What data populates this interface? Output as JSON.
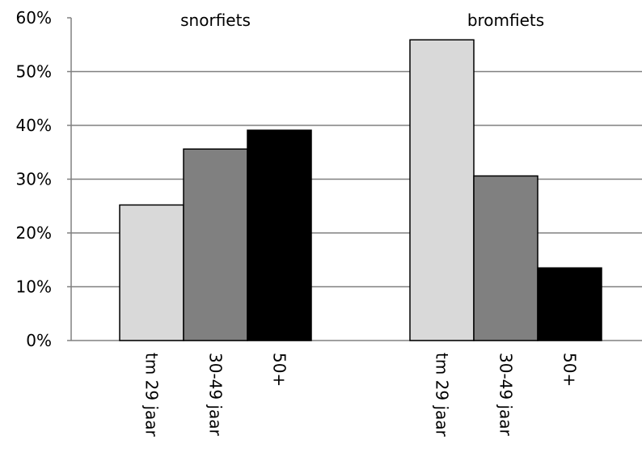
{
  "chart_data": {
    "type": "bar",
    "ylim": [
      0,
      60
    ],
    "y_ticks": [
      "0%",
      "10%",
      "20%",
      "30%",
      "40%",
      "50%",
      "60%"
    ],
    "y_tick_values": [
      0,
      10,
      20,
      30,
      40,
      50,
      60
    ],
    "grid": true,
    "groups": [
      {
        "name": "snorfiets",
        "categories": [
          "tm 29 jaar",
          "30-49 jaar",
          "50+"
        ],
        "values": [
          25.2,
          35.6,
          39.1
        ]
      },
      {
        "name": "bromfiets",
        "categories": [
          "tm 29 jaar",
          "30-49 jaar",
          "50+"
        ],
        "values": [
          55.9,
          30.6,
          13.5
        ]
      }
    ],
    "colors": [
      "#d9d9d9",
      "#808080",
      "#000000"
    ]
  }
}
